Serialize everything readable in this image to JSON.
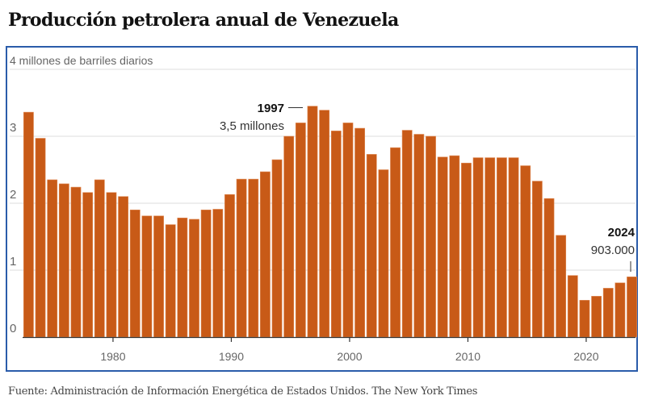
{
  "chart_data": {
    "type": "bar",
    "title": "Producción petrolera anual de Venezuela",
    "ylabel": "4 millones de barriles diarios",
    "xlabel": "",
    "ylim": [
      0,
      4
    ],
    "yticks": [
      0,
      1,
      2,
      3,
      4
    ],
    "ytick_labels": [
      "0",
      "1",
      "2",
      "3",
      ""
    ],
    "xticks": [
      1980,
      1990,
      2000,
      2010,
      2020
    ],
    "xtick_labels": [
      "1980",
      "1990",
      "2000",
      "2010",
      "2020"
    ],
    "grid": true,
    "categories": [
      1973,
      1974,
      1975,
      1976,
      1977,
      1978,
      1979,
      1980,
      1981,
      1982,
      1983,
      1984,
      1985,
      1986,
      1987,
      1988,
      1989,
      1990,
      1991,
      1992,
      1993,
      1994,
      1995,
      1996,
      1997,
      1998,
      1999,
      2000,
      2001,
      2002,
      2003,
      2004,
      2005,
      2006,
      2007,
      2008,
      2009,
      2010,
      2011,
      2012,
      2013,
      2014,
      2015,
      2016,
      2017,
      2018,
      2019,
      2020,
      2021,
      2022,
      2023,
      2024
    ],
    "values": [
      3.36,
      2.97,
      2.35,
      2.29,
      2.24,
      2.16,
      2.35,
      2.16,
      2.1,
      1.9,
      1.81,
      1.81,
      1.68,
      1.78,
      1.76,
      1.9,
      1.91,
      2.13,
      2.36,
      2.36,
      2.47,
      2.65,
      3.0,
      3.2,
      3.45,
      3.39,
      3.08,
      3.2,
      3.12,
      2.73,
      2.5,
      2.83,
      3.09,
      3.03,
      3.0,
      2.69,
      2.71,
      2.6,
      2.68,
      2.68,
      2.68,
      2.68,
      2.56,
      2.33,
      2.07,
      1.52,
      0.92,
      0.55,
      0.61,
      0.73,
      0.81,
      0.9
    ],
    "annotations": [
      {
        "year": 1997,
        "label": "1997",
        "text": "3,5 millones"
      },
      {
        "year": 2024,
        "label": "2024",
        "text": "903.000"
      }
    ],
    "colors": {
      "bar": "#c85a17",
      "bar_edge": "#e08a55",
      "frame": "#2a5caa",
      "grid": "#dddddd",
      "axis": "#333333"
    }
  },
  "footer": "Fuente: Administración de Información Energética de Estados Unidos.  The New York Times"
}
